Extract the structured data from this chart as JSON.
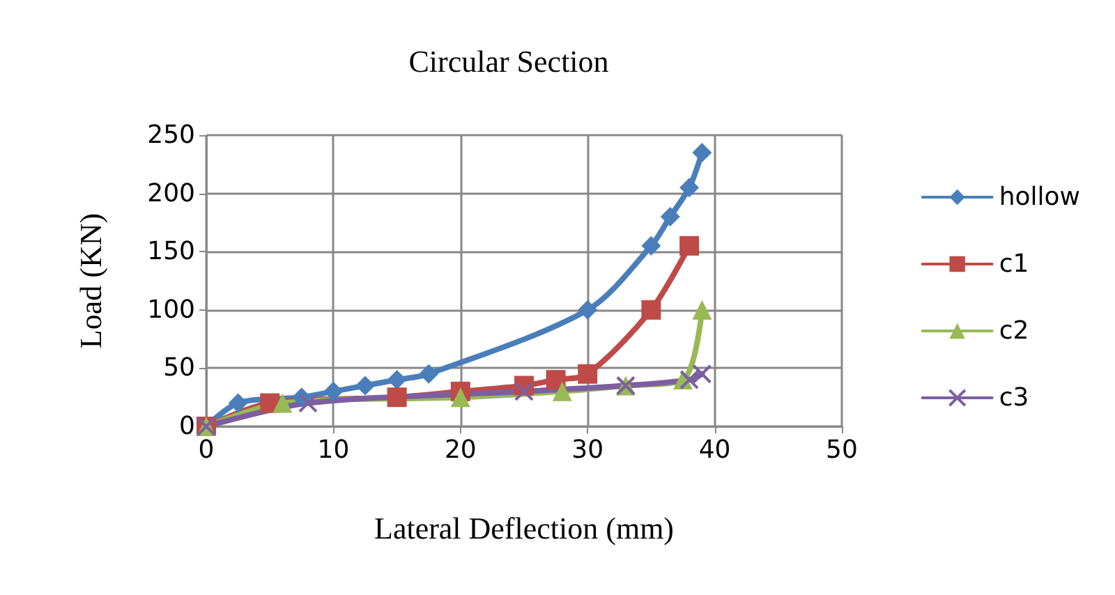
{
  "chart_data": {
    "type": "line",
    "title": "Circular Section",
    "xlabel": "Lateral Deflection (mm)",
    "ylabel": "Load (KN)",
    "xlim": [
      0,
      50
    ],
    "xticks": [
      0,
      10,
      20,
      30,
      40,
      50
    ],
    "ylim": [
      0,
      250
    ],
    "yticks": [
      0,
      50,
      100,
      150,
      200,
      250
    ],
    "grid": true,
    "legend": "right",
    "series": [
      {
        "name": "hollow",
        "color": "#4a7ebb",
        "marker": "diamond",
        "x": [
          0,
          2.5,
          7.5,
          10,
          12.5,
          15,
          17.5,
          30,
          35,
          36.5,
          38,
          39
        ],
        "values": [
          0,
          20,
          25,
          30,
          35,
          40,
          45,
          100,
          155,
          180,
          205,
          235
        ]
      },
      {
        "name": "c1",
        "color": "#be4b48",
        "marker": "square",
        "x": [
          0,
          5,
          15,
          20,
          25,
          27.5,
          30,
          35,
          38
        ],
        "values": [
          0,
          20,
          25,
          30,
          35,
          40,
          45,
          100,
          155
        ]
      },
      {
        "name": "c2",
        "color": "#98b954",
        "marker": "triangle",
        "x": [
          0,
          6,
          20,
          28,
          33,
          37.5,
          39
        ],
        "values": [
          0,
          20,
          25,
          30,
          35,
          40,
          100
        ]
      },
      {
        "name": "c3",
        "color": "#7d5fa0",
        "marker": "cross",
        "x": [
          0,
          8,
          25,
          33,
          38,
          39
        ],
        "values": [
          0,
          20,
          30,
          35,
          40,
          45
        ]
      }
    ]
  }
}
